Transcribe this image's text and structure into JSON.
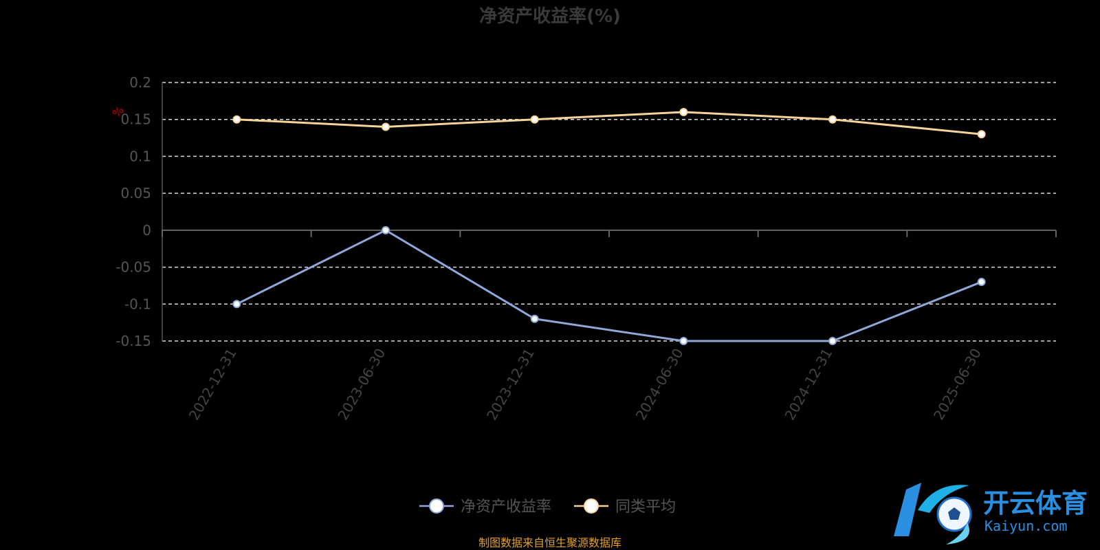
{
  "chart_data": {
    "type": "line",
    "title": "净资产收益率(%)",
    "y_unit_mark": "%",
    "categories": [
      "2022-12-31",
      "2023-06-30",
      "2023-12-31",
      "2024-06-30",
      "2024-12-31",
      "2025-06-30"
    ],
    "series": [
      {
        "name": "净资产收益率",
        "values": [
          -0.1,
          0,
          -0.12,
          -0.15,
          -0.15,
          -0.07
        ],
        "color": "#8fa8d8"
      },
      {
        "name": "同类平均",
        "values": [
          0.15,
          0.14,
          0.15,
          0.16,
          0.15,
          0.13
        ],
        "color": "#f6d39a"
      }
    ],
    "ylim": [
      -0.15,
      0.2
    ],
    "yticks": [
      0.2,
      0.15,
      0.1,
      0.05,
      0,
      -0.05,
      -0.1,
      -0.15
    ],
    "ytick_labels": [
      "0.2",
      "0.15",
      "0.1",
      "0.05",
      "0",
      "-0.05",
      "-0.1",
      "-0.15"
    ],
    "grid": true,
    "legend_position": "bottom-center"
  },
  "footer": {
    "source": "制图数据来自恒生聚源数据库"
  },
  "watermark": {
    "brand_cn": "开云体育",
    "brand_en": "Kaiyun.com",
    "icon": "soccer-ball-k-logo-icon"
  }
}
